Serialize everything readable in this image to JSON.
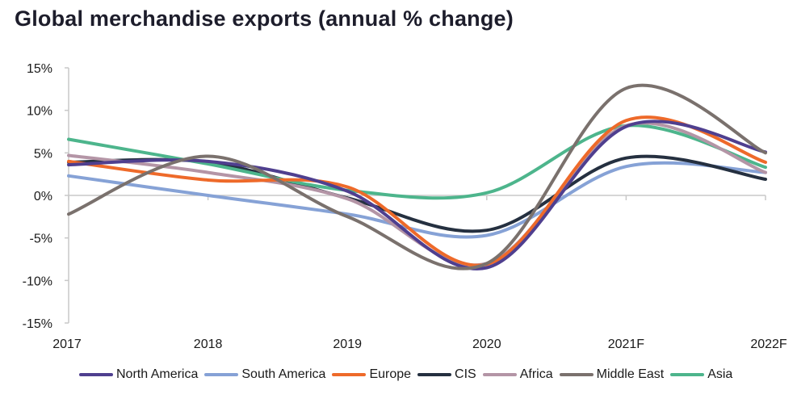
{
  "chart_data": {
    "type": "line",
    "title": "Global merchandise exports (annual % change)",
    "xlabel": "",
    "ylabel": "",
    "categories": [
      "2017",
      "2018",
      "2019",
      "2020",
      "2021F",
      "2022F"
    ],
    "y_tick_labels": [
      "15%",
      "10%",
      "5%",
      "0%",
      "-5%",
      "-10%",
      "-15%"
    ],
    "y_ticks": [
      15,
      10,
      5,
      0,
      -5,
      -10,
      -15
    ],
    "ylim": [
      -15,
      15
    ],
    "grid": false,
    "legend_position": "bottom",
    "series": [
      {
        "name": "North America",
        "color": "#4f3f8f",
        "values": [
          3.6,
          4.0,
          0.5,
          -8.5,
          8.1,
          5.1
        ]
      },
      {
        "name": "South America",
        "color": "#86a2d6",
        "values": [
          2.3,
          0.0,
          -2.2,
          -4.7,
          3.4,
          2.7
        ]
      },
      {
        "name": "Europe",
        "color": "#ee6a2a",
        "values": [
          4.0,
          1.8,
          1.0,
          -8.1,
          8.8,
          3.9
        ]
      },
      {
        "name": "CIS",
        "color": "#253040",
        "values": [
          3.9,
          3.9,
          -0.3,
          -4.1,
          4.4,
          1.9
        ]
      },
      {
        "name": "Africa",
        "color": "#b495a6",
        "values": [
          4.7,
          2.7,
          -0.4,
          -8.0,
          8.2,
          2.7
        ]
      },
      {
        "name": "Middle East",
        "color": "#7a716d",
        "values": [
          -2.2,
          4.6,
          -2.5,
          -8.0,
          12.6,
          5.0
        ]
      },
      {
        "name": "Asia",
        "color": "#4db58c",
        "values": [
          6.6,
          3.7,
          0.6,
          0.3,
          8.2,
          3.3
        ]
      }
    ]
  }
}
